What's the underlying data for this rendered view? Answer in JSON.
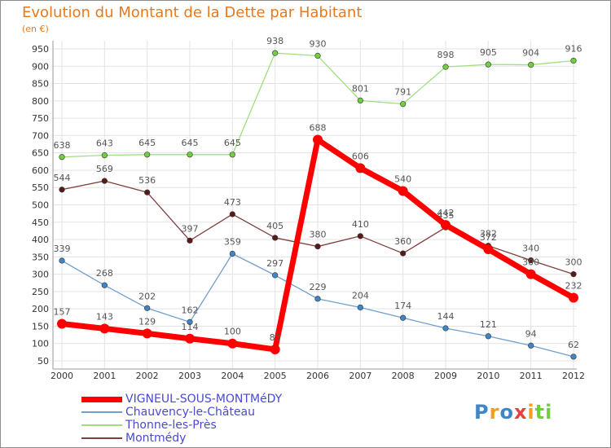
{
  "chart_data": {
    "type": "line",
    "title": "Evolution du Montant de la Dette par Habitant",
    "subtitle": "(en €)",
    "x": [
      "2000",
      "2001",
      "2002",
      "2003",
      "2004",
      "2005",
      "2006",
      "2007",
      "2008",
      "2009",
      "2010",
      "2011",
      "2012"
    ],
    "ylim": [
      50,
      950
    ],
    "yticks": [
      50,
      100,
      150,
      200,
      250,
      300,
      350,
      400,
      450,
      500,
      550,
      600,
      650,
      700,
      750,
      800,
      850,
      900,
      950
    ],
    "grid": true,
    "legend_position": "bottom-left",
    "series": [
      {
        "name": "Chauvency-le-Château",
        "color": "#6f9fcf",
        "point_color": "#3f86c8",
        "values": [
          339,
          268,
          202,
          162,
          359,
          297,
          229,
          204,
          174,
          144,
          121,
          94,
          62
        ]
      },
      {
        "name": "Thonne-les-Près",
        "color": "#9fdf7f",
        "point_color": "#6fcf3f",
        "values": [
          638,
          643,
          645,
          645,
          645,
          938,
          930,
          801,
          791,
          898,
          905,
          904,
          916
        ]
      },
      {
        "name": "Montmédy",
        "color": "#7f3f3f",
        "point_color": "#5a1a1a",
        "values": [
          544,
          569,
          536,
          397,
          473,
          405,
          380,
          410,
          360,
          435,
          382,
          340,
          300
        ]
      },
      {
        "name": "VIGNEUL-SOUS-MONTMéDY",
        "color": "#ff0000",
        "point_color": "#ff0000",
        "values": [
          157,
          143,
          129,
          114,
          100,
          83,
          688,
          606,
          540,
          442,
          372,
          300,
          232
        ]
      }
    ]
  },
  "legend": {
    "items": [
      "VIGNEUL-SOUS-MONTMéDY",
      "Chauvency-le-Château",
      "Thonne-les-Près",
      "Montmédy"
    ],
    "colors": [
      "#ff0000",
      "#6f9fcf",
      "#9fdf7f",
      "#7f3f3f"
    ]
  },
  "logo": {
    "letters": [
      "P",
      "r",
      "o",
      "x",
      "i",
      "t",
      "i"
    ],
    "colors": [
      "#3f86c8",
      "#f0a020",
      "#3f86c8",
      "#e84040",
      "#f0a020",
      "#6fcf3f",
      "#6fcf3f"
    ]
  }
}
